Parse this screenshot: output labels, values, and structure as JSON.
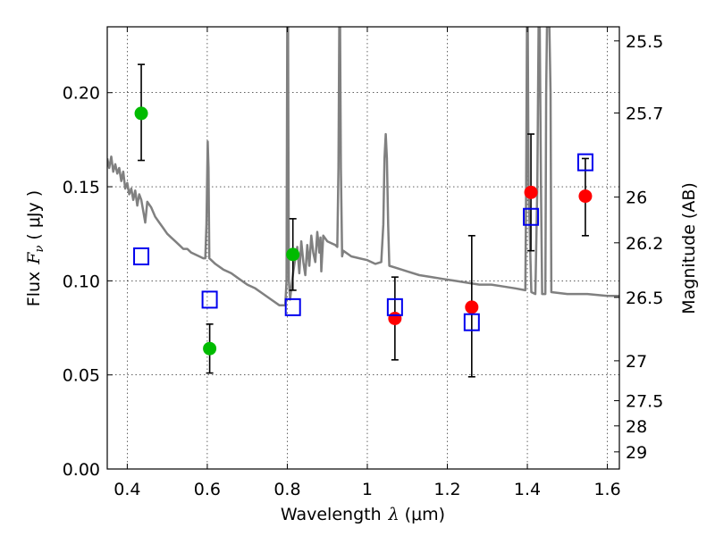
{
  "chart_data": {
    "type": "scatter",
    "xlabel_text": "Wavelength",
    "xlabel_symbol": "λ",
    "xlabel_unit": "(μm)",
    "ylabel_text": "Flux",
    "ylabel_symbol": "F",
    "ylabel_subscript": "ν",
    "ylabel_unit": "( μJy )",
    "y2label": "Magnitude (AB)",
    "xlim": [
      0.35,
      1.63
    ],
    "ylim": [
      0.0,
      0.235
    ],
    "grid": true,
    "x_ticks": [
      {
        "value": 0.4,
        "label": "0.4"
      },
      {
        "value": 0.6,
        "label": "0.6"
      },
      {
        "value": 0.8,
        "label": "0.8"
      },
      {
        "value": 1.0,
        "label": "1"
      },
      {
        "value": 1.2,
        "label": "1.2"
      },
      {
        "value": 1.4,
        "label": "1.4"
      },
      {
        "value": 1.6,
        "label": "1.6"
      }
    ],
    "y_ticks": [
      {
        "value": 0.0,
        "label": "0.00"
      },
      {
        "value": 0.05,
        "label": "0.05"
      },
      {
        "value": 0.1,
        "label": "0.10"
      },
      {
        "value": 0.15,
        "label": "0.15"
      },
      {
        "value": 0.2,
        "label": "0.20"
      }
    ],
    "y2_ticks": [
      {
        "flux": 0.2275,
        "label": "25.5"
      },
      {
        "flux": 0.1892,
        "label": "25.7"
      },
      {
        "flux": 0.1445,
        "label": "26"
      },
      {
        "flux": 0.1202,
        "label": "26.2"
      },
      {
        "flux": 0.0912,
        "label": "26.5"
      },
      {
        "flux": 0.0575,
        "label": "27"
      },
      {
        "flux": 0.0363,
        "label": "27.5"
      },
      {
        "flux": 0.0229,
        "label": "28"
      },
      {
        "flux": 0.0091,
        "label": "29"
      }
    ],
    "series": [
      {
        "name": "model spectrum",
        "kind": "line",
        "color": "#808080",
        "points": [
          [
            0.35,
            0.165
          ],
          [
            0.355,
            0.16
          ],
          [
            0.36,
            0.166
          ],
          [
            0.365,
            0.158
          ],
          [
            0.37,
            0.162
          ],
          [
            0.375,
            0.157
          ],
          [
            0.38,
            0.16
          ],
          [
            0.385,
            0.153
          ],
          [
            0.39,
            0.158
          ],
          [
            0.395,
            0.149
          ],
          [
            0.4,
            0.152
          ],
          [
            0.405,
            0.146
          ],
          [
            0.41,
            0.149
          ],
          [
            0.415,
            0.143
          ],
          [
            0.42,
            0.148
          ],
          [
            0.425,
            0.14
          ],
          [
            0.43,
            0.146
          ],
          [
            0.435,
            0.143
          ],
          [
            0.44,
            0.137
          ],
          [
            0.445,
            0.131
          ],
          [
            0.45,
            0.142
          ],
          [
            0.46,
            0.139
          ],
          [
            0.47,
            0.134
          ],
          [
            0.48,
            0.131
          ],
          [
            0.49,
            0.128
          ],
          [
            0.5,
            0.125
          ],
          [
            0.51,
            0.123
          ],
          [
            0.52,
            0.121
          ],
          [
            0.53,
            0.119
          ],
          [
            0.54,
            0.117
          ],
          [
            0.55,
            0.117
          ],
          [
            0.56,
            0.115
          ],
          [
            0.57,
            0.114
          ],
          [
            0.58,
            0.113
          ],
          [
            0.59,
            0.112
          ],
          [
            0.595,
            0.112
          ],
          [
            0.598,
            0.13
          ],
          [
            0.601,
            0.174
          ],
          [
            0.603,
            0.16
          ],
          [
            0.605,
            0.112
          ],
          [
            0.61,
            0.111
          ],
          [
            0.62,
            0.109
          ],
          [
            0.64,
            0.106
          ],
          [
            0.66,
            0.104
          ],
          [
            0.68,
            0.101
          ],
          [
            0.7,
            0.098
          ],
          [
            0.72,
            0.096
          ],
          [
            0.74,
            0.093
          ],
          [
            0.76,
            0.09
          ],
          [
            0.78,
            0.087
          ],
          [
            0.795,
            0.087
          ],
          [
            0.798,
            0.1
          ],
          [
            0.8,
            0.235
          ],
          [
            0.802,
            0.235
          ],
          [
            0.804,
            0.1
          ],
          [
            0.807,
            0.09
          ],
          [
            0.81,
            0.096
          ],
          [
            0.815,
            0.105
          ],
          [
            0.82,
            0.112
          ],
          [
            0.825,
            0.118
          ],
          [
            0.83,
            0.104
          ],
          [
            0.835,
            0.121
          ],
          [
            0.84,
            0.11
          ],
          [
            0.845,
            0.103
          ],
          [
            0.85,
            0.119
          ],
          [
            0.855,
            0.108
          ],
          [
            0.86,
            0.124
          ],
          [
            0.865,
            0.115
          ],
          [
            0.87,
            0.11
          ],
          [
            0.875,
            0.126
          ],
          [
            0.88,
            0.115
          ],
          [
            0.883,
            0.123
          ],
          [
            0.885,
            0.105
          ],
          [
            0.89,
            0.124
          ],
          [
            0.9,
            0.121
          ],
          [
            0.91,
            0.12
          ],
          [
            0.92,
            0.119
          ],
          [
            0.925,
            0.118
          ],
          [
            0.928,
            0.16
          ],
          [
            0.93,
            0.235
          ],
          [
            0.932,
            0.235
          ],
          [
            0.934,
            0.16
          ],
          [
            0.937,
            0.113
          ],
          [
            0.94,
            0.116
          ],
          [
            0.96,
            0.113
          ],
          [
            0.98,
            0.112
          ],
          [
            1.0,
            0.111
          ],
          [
            1.02,
            0.109
          ],
          [
            1.035,
            0.11
          ],
          [
            1.04,
            0.13
          ],
          [
            1.043,
            0.165
          ],
          [
            1.046,
            0.178
          ],
          [
            1.049,
            0.165
          ],
          [
            1.052,
            0.13
          ],
          [
            1.055,
            0.108
          ],
          [
            1.07,
            0.107
          ],
          [
            1.1,
            0.105
          ],
          [
            1.13,
            0.103
          ],
          [
            1.16,
            0.102
          ],
          [
            1.19,
            0.101
          ],
          [
            1.22,
            0.1
          ],
          [
            1.25,
            0.099
          ],
          [
            1.28,
            0.098
          ],
          [
            1.31,
            0.098
          ],
          [
            1.34,
            0.097
          ],
          [
            1.37,
            0.096
          ],
          [
            1.395,
            0.095
          ],
          [
            1.397,
            0.15
          ],
          [
            1.399,
            0.235
          ],
          [
            1.401,
            0.235
          ],
          [
            1.403,
            0.15
          ],
          [
            1.41,
            0.094
          ],
          [
            1.42,
            0.093
          ],
          [
            1.425,
            0.15
          ],
          [
            1.428,
            0.235
          ],
          [
            1.431,
            0.235
          ],
          [
            1.434,
            0.15
          ],
          [
            1.437,
            0.093
          ],
          [
            1.445,
            0.093
          ],
          [
            1.447,
            0.2
          ],
          [
            1.449,
            0.235
          ],
          [
            1.455,
            0.235
          ],
          [
            1.458,
            0.2
          ],
          [
            1.46,
            0.094
          ],
          [
            1.5,
            0.093
          ],
          [
            1.55,
            0.093
          ],
          [
            1.6,
            0.092
          ],
          [
            1.63,
            0.092
          ]
        ]
      },
      {
        "name": "green measurements",
        "kind": "errorbar",
        "color": "#00bb00",
        "points": [
          {
            "x": 0.435,
            "y": 0.189,
            "lo": 0.164,
            "hi": 0.215
          },
          {
            "x": 0.606,
            "y": 0.064,
            "lo": 0.051,
            "hi": 0.077
          },
          {
            "x": 0.814,
            "y": 0.114,
            "lo": 0.095,
            "hi": 0.133
          }
        ]
      },
      {
        "name": "red measurements",
        "kind": "errorbar",
        "color": "#ff0000",
        "points": [
          {
            "x": 1.069,
            "y": 0.08,
            "lo": 0.058,
            "hi": 0.102
          },
          {
            "x": 1.261,
            "y": 0.086,
            "lo": 0.049,
            "hi": 0.124
          },
          {
            "x": 1.409,
            "y": 0.147,
            "lo": 0.116,
            "hi": 0.178
          },
          {
            "x": 1.545,
            "y": 0.145,
            "lo": 0.124,
            "hi": 0.165
          }
        ]
      },
      {
        "name": "model photometry",
        "kind": "open-square",
        "color": "#0000ee",
        "points": [
          {
            "x": 0.435,
            "y": 0.113
          },
          {
            "x": 0.606,
            "y": 0.09
          },
          {
            "x": 0.814,
            "y": 0.086
          },
          {
            "x": 1.069,
            "y": 0.086
          },
          {
            "x": 1.261,
            "y": 0.078
          },
          {
            "x": 1.409,
            "y": 0.134
          },
          {
            "x": 1.545,
            "y": 0.163
          }
        ]
      }
    ]
  }
}
